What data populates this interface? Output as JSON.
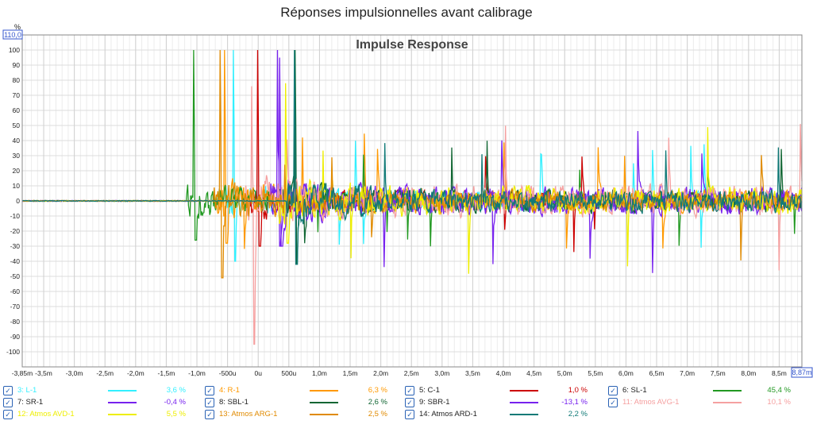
{
  "page_title": "Réponses impulsionnelles avant calibrage",
  "chart_data": {
    "type": "line",
    "title": "Impulse Response",
    "ylabel": "%",
    "y_top_readout": "110,0",
    "x_right_readout": "8,87m",
    "ylim": [
      -110,
      110
    ],
    "xlim": [
      -3.85,
      8.87
    ],
    "grid": true,
    "y_ticks": [
      100,
      90,
      80,
      70,
      60,
      50,
      40,
      30,
      20,
      10,
      0,
      -10,
      -20,
      -30,
      -40,
      -50,
      -60,
      -70,
      -80,
      -90,
      -100
    ],
    "x_ticks": [
      {
        "v": -3.85,
        "label": "-3,85m"
      },
      {
        "v": -3.5,
        "label": "-3,5m"
      },
      {
        "v": -3.0,
        "label": "-3,0m"
      },
      {
        "v": -2.5,
        "label": "-2,5m"
      },
      {
        "v": -2.0,
        "label": "-2,0m"
      },
      {
        "v": -1.5,
        "label": "-1,5m"
      },
      {
        "v": -1.0,
        "label": "-1,0m"
      },
      {
        "v": -0.5,
        "label": "-500u"
      },
      {
        "v": 0.0,
        "label": "0u"
      },
      {
        "v": 0.5,
        "label": "500u"
      },
      {
        "v": 1.0,
        "label": "1,0m"
      },
      {
        "v": 1.5,
        "label": "1,5m"
      },
      {
        "v": 2.0,
        "label": "2,0m"
      },
      {
        "v": 2.5,
        "label": "2,5m"
      },
      {
        "v": 3.0,
        "label": "3,0m"
      },
      {
        "v": 3.5,
        "label": "3,5m"
      },
      {
        "v": 4.0,
        "label": "4,0m"
      },
      {
        "v": 4.5,
        "label": "4,5m"
      },
      {
        "v": 5.0,
        "label": "5,0m"
      },
      {
        "v": 5.5,
        "label": "5,5m"
      },
      {
        "v": 6.0,
        "label": "6,0m"
      },
      {
        "v": 6.5,
        "label": "6,5m"
      },
      {
        "v": 7.0,
        "label": "7,0m"
      },
      {
        "v": 7.5,
        "label": "7,5m"
      },
      {
        "v": 8.0,
        "label": "8,0m"
      },
      {
        "v": 8.5,
        "label": "8,5m"
      }
    ],
    "series": [
      {
        "name": "3: L-1",
        "value": "3,6 %",
        "color": "#33f0ff",
        "onset": -0.41,
        "peak": 100,
        "neg": -40,
        "tail": 8
      },
      {
        "name": "4: R-1",
        "value": "6,3 %",
        "color": "#ff9900",
        "onset": -0.55,
        "peak": 100,
        "neg": -28,
        "tail": 10
      },
      {
        "name": "5: C-1",
        "value": "1,0 %",
        "color": "#cc0000",
        "onset": -0.01,
        "peak": 100,
        "neg": -30,
        "tail": 7
      },
      {
        "name": "6: SL-1",
        "value": "45,4 %",
        "color": "#229922",
        "onset": -1.05,
        "peak": 100,
        "neg": -26,
        "tail": 8
      },
      {
        "name": "7: SR-1",
        "value": "-0,4 %",
        "color": "#7722ee",
        "onset": 0.32,
        "peak": 100,
        "neg": -30,
        "tail": 12
      },
      {
        "name": "8: SBL-1",
        "value": "2,6 %",
        "color": "#116633",
        "onset": 0.6,
        "peak": 100,
        "neg": -42,
        "tail": 10
      },
      {
        "name": "9: SBR-1",
        "value": "-13,1 %",
        "color": "#7722ee",
        "onset": 0.35,
        "peak": 95,
        "neg": -30,
        "tail": 12
      },
      {
        "name": "11: Atmos AVG-1",
        "value": "10,1 %",
        "color": "#f5a0a0",
        "onset": -0.1,
        "peak": 76,
        "neg": -95,
        "tail": 14
      },
      {
        "name": "12: Atmos AVD-1",
        "value": "5,5 %",
        "color": "#eeee00",
        "onset": 0.45,
        "peak": 78,
        "neg": -28,
        "tail": 12
      },
      {
        "name": "13: Atmos ARG-1",
        "value": "2,5 %",
        "color": "#e08a00",
        "onset": -0.62,
        "peak": 100,
        "neg": -51,
        "tail": 9
      },
      {
        "name": "14: Atmos ARD-1",
        "value": "2,2 %",
        "color": "#117a77",
        "onset": 0.59,
        "peak": 100,
        "neg": -42,
        "tail": 10
      }
    ]
  }
}
